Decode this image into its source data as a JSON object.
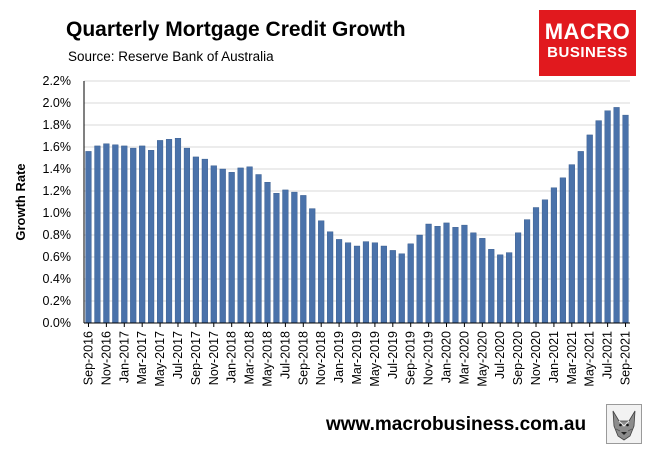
{
  "header": {
    "title": "Quarterly Mortgage Credit Growth",
    "subtitle": "Source: Reserve Bank of Australia"
  },
  "logo": {
    "line1": "MACRO",
    "line2": "BUSINESS",
    "color": "#e1191e"
  },
  "footer": {
    "url": "www.macrobusiness.com.au"
  },
  "colors": {
    "bar": "#4a72aa",
    "bar_edge": "#2f5487",
    "grid": "#d9d9d9"
  },
  "chart_data": {
    "type": "bar",
    "title": "Quarterly Mortgage Credit Growth",
    "ylabel": "Growth Rate",
    "ylim": [
      0,
      2.2
    ],
    "ytick_step": 0.2,
    "y_format": "percent_1dp",
    "grid": true,
    "tick_labels": [
      "Sep-2016",
      "Nov-2016",
      "Jan-2017",
      "Mar-2017",
      "May-2017",
      "Jul-2017",
      "Sep-2017",
      "Nov-2017",
      "Jan-2018",
      "Mar-2018",
      "May-2018",
      "Jul-2018",
      "Sep-2018",
      "Nov-2018",
      "Jan-2019",
      "Mar-2019",
      "May-2019",
      "Jul-2019",
      "Sep-2019",
      "Nov-2019",
      "Jan-2020",
      "Mar-2020",
      "May-2020",
      "Jul-2020",
      "Sep-2020",
      "Nov-2020",
      "Jan-2021",
      "Mar-2021",
      "May-2021",
      "Jul-2021",
      "Sep-2021"
    ],
    "categories": [
      "Sep-2016",
      "Oct-2016",
      "Nov-2016",
      "Dec-2016",
      "Jan-2017",
      "Feb-2017",
      "Mar-2017",
      "Apr-2017",
      "May-2017",
      "Jun-2017",
      "Jul-2017",
      "Aug-2017",
      "Sep-2017",
      "Oct-2017",
      "Nov-2017",
      "Dec-2017",
      "Jan-2018",
      "Feb-2018",
      "Mar-2018",
      "Apr-2018",
      "May-2018",
      "Jun-2018",
      "Jul-2018",
      "Aug-2018",
      "Sep-2018",
      "Oct-2018",
      "Nov-2018",
      "Dec-2018",
      "Jan-2019",
      "Feb-2019",
      "Mar-2019",
      "Apr-2019",
      "May-2019",
      "Jun-2019",
      "Jul-2019",
      "Aug-2019",
      "Sep-2019",
      "Oct-2019",
      "Nov-2019",
      "Dec-2019",
      "Jan-2020",
      "Feb-2020",
      "Mar-2020",
      "Apr-2020",
      "May-2020",
      "Jun-2020",
      "Jul-2020",
      "Aug-2020",
      "Sep-2020",
      "Oct-2020",
      "Nov-2020",
      "Dec-2020",
      "Jan-2021",
      "Feb-2021",
      "Mar-2021",
      "Apr-2021",
      "May-2021",
      "Jun-2021",
      "Jul-2021",
      "Aug-2021",
      "Sep-2021"
    ],
    "values": [
      1.56,
      1.61,
      1.63,
      1.62,
      1.61,
      1.59,
      1.61,
      1.57,
      1.66,
      1.67,
      1.68,
      1.59,
      1.51,
      1.49,
      1.43,
      1.4,
      1.37,
      1.41,
      1.42,
      1.35,
      1.28,
      1.18,
      1.21,
      1.19,
      1.16,
      1.04,
      0.93,
      0.83,
      0.76,
      0.73,
      0.7,
      0.74,
      0.73,
      0.7,
      0.66,
      0.63,
      0.72,
      0.8,
      0.9,
      0.88,
      0.91,
      0.87,
      0.89,
      0.82,
      0.77,
      0.67,
      0.62,
      0.64,
      0.82,
      0.94,
      1.05,
      1.12,
      1.23,
      1.32,
      1.44,
      1.56,
      1.71,
      1.84,
      1.93,
      1.96,
      1.89
    ]
  }
}
